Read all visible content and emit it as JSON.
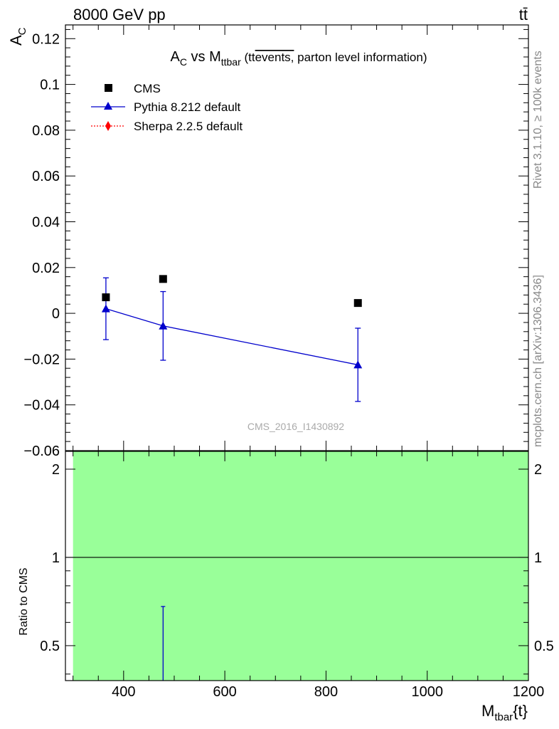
{
  "header": {
    "energy_label": "8000 GeV pp",
    "process_label": "tt̄"
  },
  "side": {
    "rivet_label": "Rivet 3.1.10, ≥ 100k events",
    "mcplots_label": "mcplots.cern.ch [arXiv:1306.3436]"
  },
  "watermark": "CMS_2016_I1430892",
  "colors": {
    "pythia": "#0000cc",
    "sherpa": "#ff0000",
    "cms": "#000000",
    "band": "#99ff99"
  },
  "chart_data": [
    {
      "type": "scatter",
      "title_parts": {
        "a": "A",
        "a_sub": "C",
        "vs": " vs M",
        "m_sub": "ttbar",
        "open": " (tt",
        "overline": "events,",
        "rest": " parton level information)"
      },
      "ylabel": {
        "main": "A",
        "sub": "C"
      },
      "xlim": [
        285,
        1200
      ],
      "ylim": [
        -0.06,
        0.126
      ],
      "yticks": [
        -0.06,
        -0.04,
        -0.02,
        0,
        0.02,
        0.04,
        0.06,
        0.08,
        0.1,
        0.12
      ],
      "ytick_labels": [
        "−0.06",
        "−0.04",
        "−0.02",
        "0",
        "0.02",
        "0.04",
        "0.06",
        "0.08",
        "0.1",
        "0.12"
      ],
      "legend": [
        {
          "key": "cms",
          "label": "CMS",
          "marker": "square"
        },
        {
          "key": "pythia",
          "label": "Pythia 8.212 default",
          "marker": "triangle"
        },
        {
          "key": "sherpa",
          "label": "Sherpa 2.2.5 default",
          "marker": "diamond"
        }
      ],
      "series": [
        {
          "name": "CMS",
          "x": [
            365,
            478,
            863
          ],
          "y": [
            0.007,
            0.015,
            0.0045
          ]
        },
        {
          "name": "Pythia 8.212 default",
          "x": [
            365,
            478,
            863
          ],
          "y": [
            0.002,
            -0.0055,
            -0.0225
          ],
          "yerr": [
            0.0135,
            0.015,
            0.016
          ]
        }
      ]
    },
    {
      "type": "line",
      "ylabel": "Ratio to CMS",
      "xlabel": {
        "main": "M",
        "sub": "tbar",
        "rest": "{t}"
      },
      "xlim": [
        285,
        1200
      ],
      "ylim": [
        0.38,
        2.3
      ],
      "xticks": [
        400,
        600,
        800,
        1000,
        1200
      ],
      "xtick_labels": [
        "400",
        "600",
        "800",
        "1000",
        "1200"
      ],
      "yticks": [
        0.5,
        1,
        2
      ],
      "ytick_labels": [
        "0.5",
        "1",
        "2"
      ],
      "band": {
        "x": [
          300,
          1200
        ],
        "y": [
          0.38,
          2.3
        ]
      },
      "reference_line": 1,
      "series": [
        {
          "name": "Pythia 8.212 default",
          "errorbar_x": 478,
          "errorbar_y": [
            0.38,
            0.68
          ]
        }
      ]
    }
  ]
}
